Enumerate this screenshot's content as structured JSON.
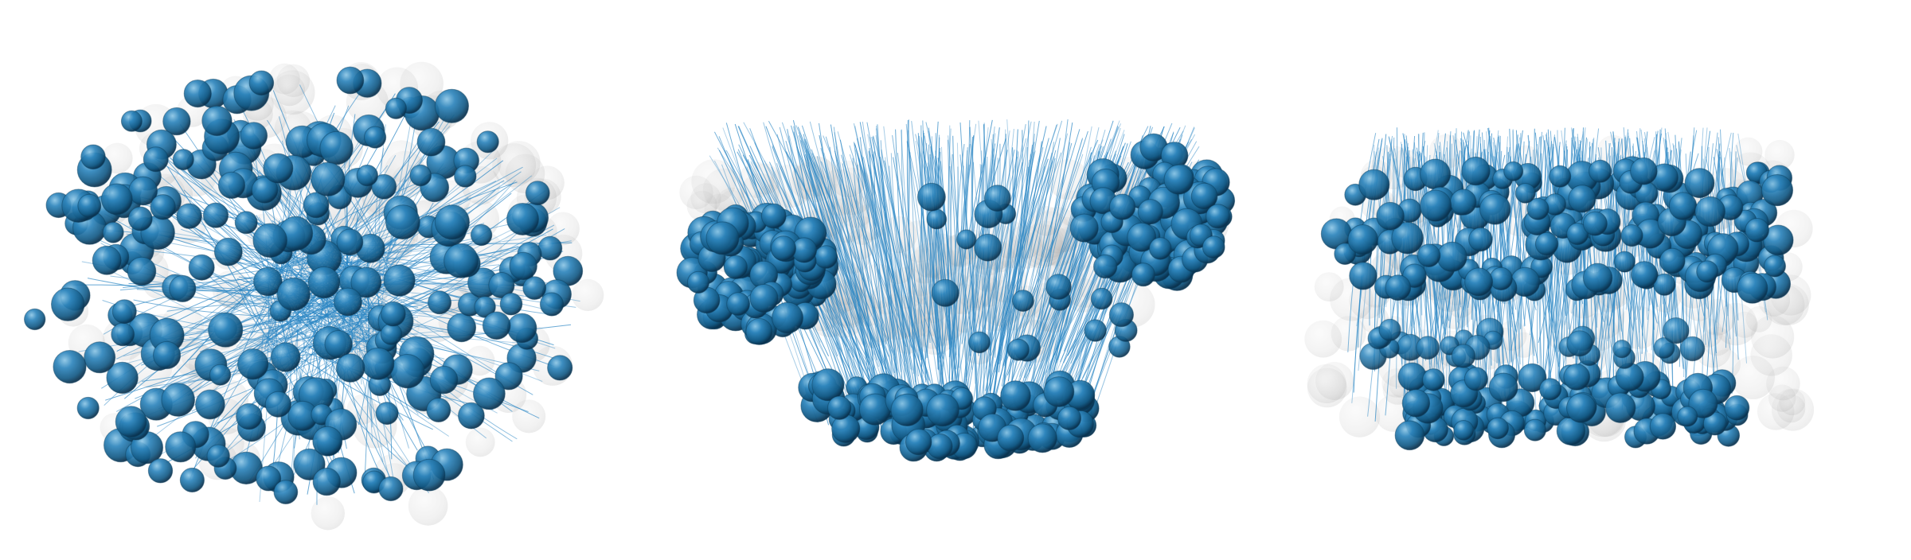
{
  "figure": {
    "background": "#ffffff",
    "colors": {
      "highlight_sphere": "#1f6f9e",
      "highlight_sphere_light": "#5aa6d1",
      "highlight_sphere_dark": "#0c3d5c",
      "trajectory_line": "#2a86c4",
      "ghost_sphere": "#9a9a9a"
    },
    "panels": [
      {
        "name": "panel-left",
        "arrangement": "ellipse-scattered"
      },
      {
        "name": "panel-middle",
        "arrangement": "bowl-three-clusters"
      },
      {
        "name": "panel-right",
        "arrangement": "band-two-layers"
      }
    ]
  }
}
